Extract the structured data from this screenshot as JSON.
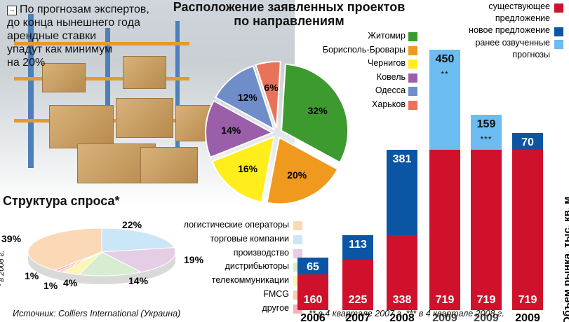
{
  "note": {
    "lines": [
      "По прогнозам экспертов,",
      "до конца нынешнего года",
      "арендные ставки",
      "упадут как минимум",
      "на 20%"
    ]
  },
  "source": "Источник: Colliers International (Украина)",
  "footnote": "** в 4 квартале 2007 г. *** в 4 квартале 2008 г.",
  "demand_note": "* в 2008 г.",
  "chart_data": [
    {
      "type": "pie",
      "title": "Расположение заявленных проектов по направлениям",
      "title_lines": [
        "Расположение заявленных проектов",
        "по направлениям"
      ],
      "slices": [
        {
          "name": "Житомир",
          "value": 32,
          "label": "32%",
          "color": "#3d9a2e"
        },
        {
          "name": "Борисполь-Бровары",
          "value": 20,
          "label": "20%",
          "color": "#ef9a1e"
        },
        {
          "name": "Чернигов",
          "value": 16,
          "label": "16%",
          "color": "#ffed1c"
        },
        {
          "name": "Ковель",
          "value": 14,
          "label": "14%",
          "color": "#9b5ea8"
        },
        {
          "name": "Одесса",
          "value": 12,
          "label": "12%",
          "color": "#6f8dc8"
        },
        {
          "name": "Харьков",
          "value": 6,
          "label": "6%",
          "color": "#e8735a"
        }
      ],
      "legend_position": "top-right"
    },
    {
      "type": "pie",
      "title": "Структура спроса*",
      "slices": [
        {
          "name": "логистические операторы",
          "value": 39,
          "label": "39%",
          "color": "#fbd9b6"
        },
        {
          "name": "торговые компании",
          "value": 22,
          "label": "22%",
          "color": "#cbe6f6"
        },
        {
          "name": "производство",
          "value": 19,
          "label": "19%",
          "color": "#e6cde6"
        },
        {
          "name": "дистрибьюторы",
          "value": 14,
          "label": "14%",
          "color": "#d7ecd0"
        },
        {
          "name": "телекоммуникации",
          "value": 4,
          "label": "4%",
          "color": "#fbf6b1"
        },
        {
          "name": "FMCG",
          "value": 1,
          "label": "1%",
          "color": "#f9ccae"
        },
        {
          "name": "другое",
          "value": 1,
          "label": "1%",
          "color": "#f4b1bd"
        }
      ],
      "legend_position": "right"
    },
    {
      "type": "bar",
      "stacked": true,
      "ylabel": "Объем рынка, тыс. кв. м",
      "categories": [
        "2006",
        "2007",
        "2008",
        "2009",
        "2009",
        "2009"
      ],
      "series": [
        {
          "name": "существующее предложение",
          "color": "#d0112b",
          "values": [
            160,
            225,
            338,
            719,
            719,
            719
          ]
        },
        {
          "name": "новое предложение",
          "color": "#0a56a4",
          "values": [
            65,
            113,
            381,
            0,
            0,
            70
          ]
        },
        {
          "name": "ранее озвученные прогнозы",
          "color": "#6bbcf0",
          "values": [
            0,
            0,
            0,
            450,
            159,
            0
          ]
        }
      ],
      "marks": [
        "",
        "",
        "",
        "**",
        "***",
        ""
      ],
      "legend_position": "top-right"
    }
  ]
}
